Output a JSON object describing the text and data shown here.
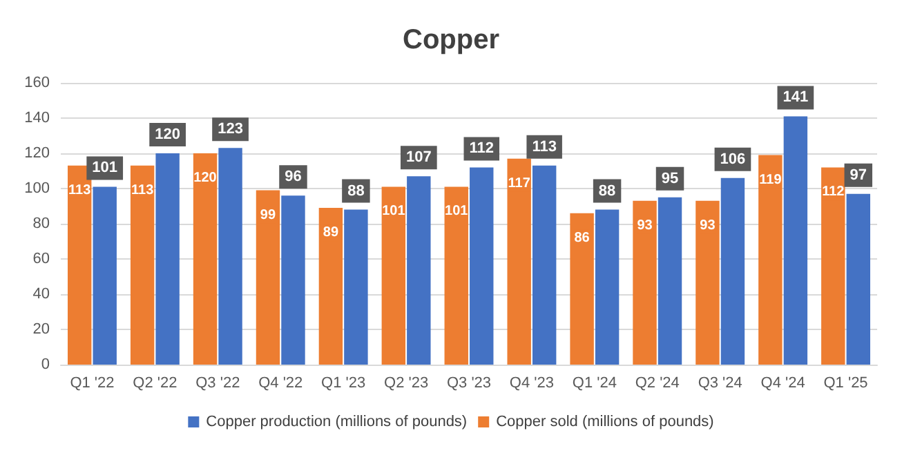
{
  "chart_data": {
    "type": "bar",
    "title": "Copper",
    "categories": [
      "Q1 '22",
      "Q2 '22",
      "Q3 '22",
      "Q4 '22",
      "Q1 '23",
      "Q2 '23",
      "Q3 '23",
      "Q4 '23",
      "Q1 '24",
      "Q2 '24",
      "Q3 '24",
      "Q4 '24",
      "Q1 '25"
    ],
    "series": [
      {
        "name": "Copper sold (millions of pounds)",
        "color": "#ed7d31",
        "values": [
          113,
          113,
          120,
          99,
          89,
          101,
          101,
          117,
          86,
          93,
          93,
          119,
          112
        ]
      },
      {
        "name": "Copper production (millions of pounds)",
        "color": "#4472c4",
        "values": [
          101,
          120,
          123,
          96,
          88,
          107,
          112,
          113,
          88,
          95,
          106,
          141,
          97
        ]
      }
    ],
    "ylim": [
      0,
      160
    ],
    "yticks": [
      0,
      20,
      40,
      60,
      80,
      100,
      120,
      140,
      160
    ],
    "grid": "y",
    "legend": "bottom",
    "data_labels": true
  }
}
